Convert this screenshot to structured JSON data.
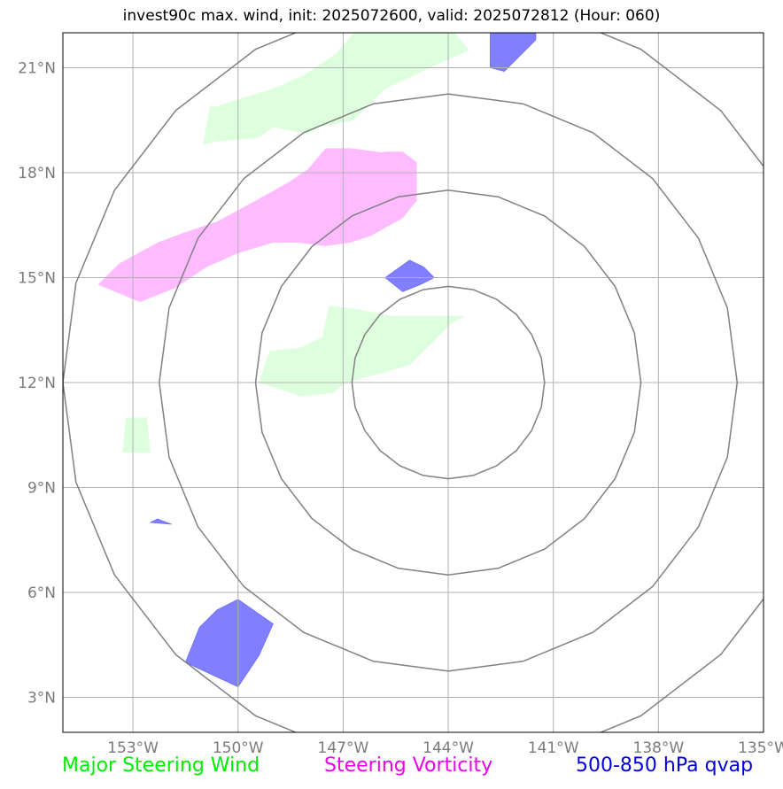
{
  "title": "invest90c max. wind, init: 2025072600, valid: 2025072812 (Hour: 060)",
  "map": {
    "lon_range": [
      -155,
      -135
    ],
    "lat_range": [
      2,
      22
    ],
    "center": {
      "lon": -144,
      "lat": 12
    },
    "x_ticks": [
      {
        "lon": -153,
        "label": "153°W"
      },
      {
        "lon": -150,
        "label": "150°W"
      },
      {
        "lon": -147,
        "label": "147°W"
      },
      {
        "lon": -144,
        "label": "144°W"
      },
      {
        "lon": -141,
        "label": "141°W"
      },
      {
        "lon": -138,
        "label": "138°W"
      },
      {
        "lon": -135,
        "label": "135°W"
      }
    ],
    "y_ticks": [
      {
        "lat": 21,
        "label": "21°N"
      },
      {
        "lat": 18,
        "label": "18°N"
      },
      {
        "lat": 15,
        "label": "15°N"
      },
      {
        "lat": 12,
        "label": "12°N"
      },
      {
        "lat": 9,
        "label": "9°N"
      },
      {
        "lat": 6,
        "label": "6°N"
      },
      {
        "lat": 3,
        "label": "3°N"
      }
    ],
    "range_rings_deg": [
      2.75,
      5.5,
      8.25,
      11.0
    ],
    "grid": true
  },
  "legend": {
    "wind": {
      "label": "Major Steering Wind",
      "color": "#00ee00"
    },
    "vorticity": {
      "label": "Steering Vorticity",
      "color": "#ee00ee"
    },
    "qvap": {
      "label": "500-850 hPa qvap",
      "color": "#0000dd"
    }
  },
  "colors": {
    "wind_fill": "#ddffdd",
    "vorticity_fill": "#ffbbff",
    "qvap_fill": "#8080ff",
    "ring": "#808080",
    "grid": "#b0b0b0"
  },
  "regions": {
    "wind": [
      [
        [
          -150.8,
          19.9
        ],
        [
          -150.6,
          19.9
        ],
        [
          -150.0,
          20.1
        ],
        [
          -149.0,
          20.4
        ],
        [
          -148.1,
          20.8
        ],
        [
          -147.2,
          21.4
        ],
        [
          -146.7,
          22.0
        ],
        [
          -144.7,
          22.0
        ],
        [
          -143.9,
          22.1
        ],
        [
          -143.4,
          21.5
        ],
        [
          -144.3,
          21.1
        ],
        [
          -145.8,
          20.4
        ],
        [
          -146.7,
          19.5
        ],
        [
          -147.7,
          19.3
        ],
        [
          -148.0,
          19.1
        ],
        [
          -149.0,
          19.3
        ],
        [
          -149.4,
          19.0
        ],
        [
          -150.6,
          18.9
        ],
        [
          -151.0,
          18.8
        ]
      ],
      [
        [
          -147.4,
          14.2
        ],
        [
          -146.6,
          14.1
        ],
        [
          -145.6,
          13.9
        ],
        [
          -143.5,
          13.9
        ],
        [
          -143.9,
          13.7
        ],
        [
          -144.5,
          13.1
        ],
        [
          -145.1,
          12.5
        ],
        [
          -145.8,
          12.3
        ],
        [
          -146.9,
          12.0
        ],
        [
          -147.3,
          11.7
        ],
        [
          -148.2,
          11.6
        ],
        [
          -149.4,
          12.0
        ],
        [
          -149.1,
          12.9
        ],
        [
          -148.2,
          13.0
        ],
        [
          -147.6,
          13.3
        ]
      ],
      [
        [
          -153.2,
          11.0
        ],
        [
          -152.6,
          11.0
        ],
        [
          -152.5,
          10.0
        ],
        [
          -153.3,
          10.0
        ]
      ]
    ],
    "vorticity": [
      [
        [
          -147.5,
          18.7
        ],
        [
          -146.8,
          18.7
        ],
        [
          -145.3,
          18.5
        ],
        [
          -144.9,
          18.3
        ],
        [
          -144.9,
          17.2
        ],
        [
          -145.3,
          16.7
        ],
        [
          -146.2,
          16.2
        ],
        [
          -146.8,
          16.0
        ],
        [
          -147.5,
          15.9
        ],
        [
          -148.3,
          16.0
        ],
        [
          -149.0,
          16.0
        ],
        [
          -150.0,
          15.7
        ],
        [
          -150.9,
          15.3
        ],
        [
          -151.8,
          14.7
        ],
        [
          -152.8,
          14.3
        ],
        [
          -154.0,
          14.8
        ],
        [
          -153.4,
          15.4
        ],
        [
          -152.3,
          16.0
        ],
        [
          -151.5,
          16.3
        ],
        [
          -150.6,
          16.6
        ],
        [
          -149.5,
          17.2
        ],
        [
          -148.6,
          17.7
        ],
        [
          -148.0,
          18.1
        ]
      ],
      [
        [
          -146.3,
          18.5
        ],
        [
          -145.6,
          18.4
        ],
        [
          -144.9,
          18.3
        ],
        [
          -145.3,
          18.6
        ],
        [
          -145.8,
          18.6
        ]
      ]
    ],
    "qvap": [
      [
        [
          -142.8,
          22.0
        ],
        [
          -141.5,
          22.0
        ],
        [
          -141.5,
          21.8
        ],
        [
          -141.9,
          21.4
        ],
        [
          -142.4,
          20.9
        ],
        [
          -142.8,
          21.0
        ]
      ],
      [
        [
          -145.1,
          15.5
        ],
        [
          -144.7,
          15.3
        ],
        [
          -144.4,
          15.0
        ],
        [
          -144.8,
          14.8
        ],
        [
          -145.3,
          14.6
        ],
        [
          -145.8,
          15.0
        ]
      ],
      [
        [
          -152.5,
          8.0
        ],
        [
          -151.9,
          7.95
        ],
        [
          -152.3,
          8.1
        ]
      ],
      [
        [
          -150.0,
          5.8
        ],
        [
          -149.0,
          5.1
        ],
        [
          -149.4,
          4.2
        ],
        [
          -150.0,
          3.3
        ],
        [
          -151.5,
          4.0
        ],
        [
          -151.1,
          5.0
        ],
        [
          -150.6,
          5.5
        ]
      ]
    ]
  }
}
